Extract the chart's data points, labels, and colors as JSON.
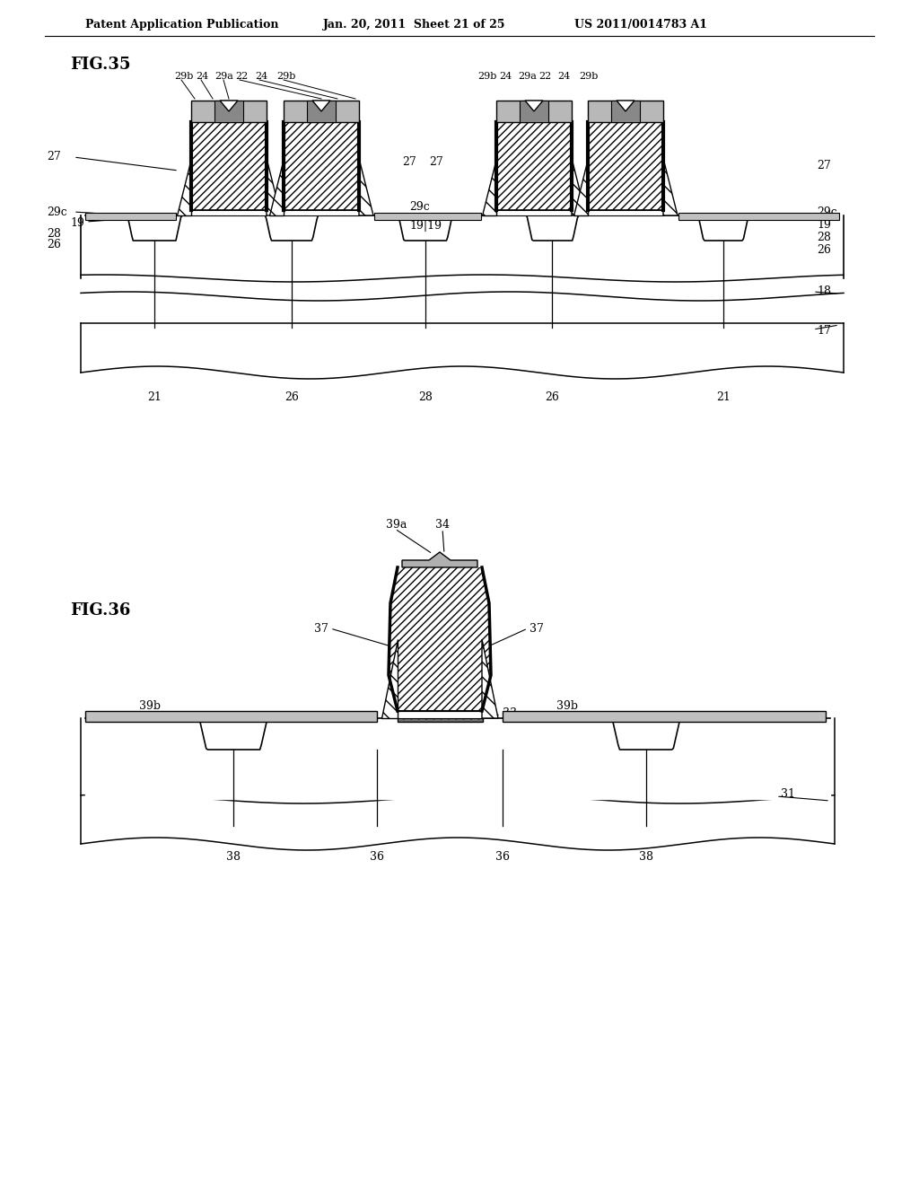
{
  "header_left": "Patent Application Publication",
  "header_mid": "Jan. 20, 2011  Sheet 21 of 25",
  "header_right": "US 2011/0014783 A1",
  "fig35_label": "FIG.35",
  "fig36_label": "FIG.36",
  "bg": "#ffffff"
}
